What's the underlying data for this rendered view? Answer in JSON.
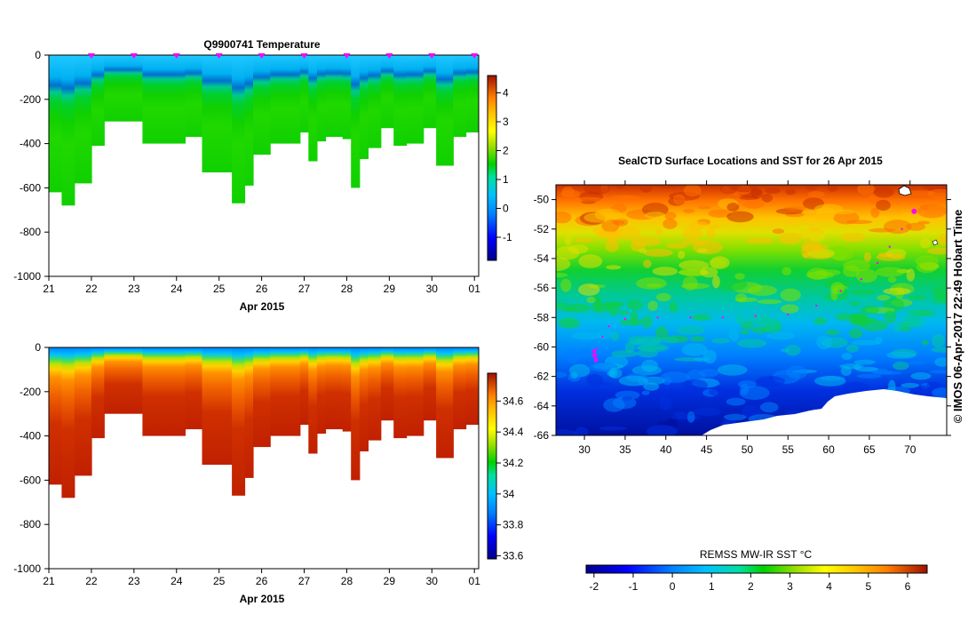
{
  "chart_data": [
    {
      "type": "heatmap",
      "title": "Q9900741  Temperature",
      "xlabel": "Apr 2015",
      "x_ticks": [
        "21",
        "22",
        "23",
        "24",
        "25",
        "26",
        "27",
        "28",
        "29",
        "30",
        "01"
      ],
      "y_ticks": [
        "0",
        "-200",
        "-400",
        "-600",
        "-800",
        "-1000"
      ],
      "ylim": [
        -1000,
        0
      ],
      "profile_days": [
        21.0,
        21.3,
        21.6,
        22.0,
        22.3,
        22.8,
        23.2,
        23.7,
        24.2,
        24.6,
        25.0,
        25.3,
        25.6,
        25.8,
        26.2,
        26.6,
        26.9,
        27.1,
        27.3,
        27.5,
        27.9,
        28.1,
        28.3,
        28.5,
        28.8,
        29.1,
        29.4,
        29.8,
        30.1,
        30.5,
        30.8
      ],
      "profile_max_depth": [
        620,
        680,
        580,
        410,
        300,
        300,
        400,
        400,
        370,
        530,
        530,
        670,
        590,
        450,
        400,
        400,
        350,
        480,
        390,
        370,
        380,
        600,
        470,
        420,
        330,
        410,
        400,
        330,
        500,
        370,
        350
      ],
      "surface_markers": [
        22,
        23,
        24,
        25,
        26,
        27,
        28,
        29,
        30,
        31
      ],
      "colorbar": {
        "ticks": [
          "-1",
          "0",
          "1",
          "2",
          "3",
          "4"
        ],
        "range": [
          -1.8,
          4.6
        ]
      }
    },
    {
      "type": "heatmap",
      "title": "",
      "xlabel": "Apr 2015",
      "x_ticks": [
        "21",
        "22",
        "23",
        "24",
        "25",
        "26",
        "27",
        "28",
        "29",
        "30",
        "01"
      ],
      "y_ticks": [
        "0",
        "-200",
        "-400",
        "-600",
        "-800",
        "-1000"
      ],
      "ylim": [
        -1000,
        0
      ],
      "colorbar": {
        "ticks": [
          "33.6",
          "33.8",
          "34",
          "34.2",
          "34.4",
          "34.6"
        ],
        "range": [
          33.58,
          34.78
        ]
      }
    },
    {
      "type": "heatmap",
      "title": "SealCTD Surface Locations and SST for 26 Apr 2015",
      "x_ticks": [
        "30",
        "35",
        "40",
        "45",
        "50",
        "55",
        "60",
        "65",
        "70"
      ],
      "y_ticks": [
        "-50",
        "-52",
        "-54",
        "-56",
        "-58",
        "-60",
        "-62",
        "-64",
        "-66"
      ],
      "xlim": [
        26.5,
        74.5
      ],
      "ylim": [
        -66,
        -49
      ],
      "side_label": "© IMOS 06-Apr-2017 22:49 Hobart Time",
      "colorbar": {
        "label": "REMSS MW-IR SST °C",
        "ticks": [
          "-2",
          "-1",
          "0",
          "1",
          "2",
          "3",
          "4",
          "5",
          "6"
        ],
        "range": [
          -2.2,
          6.5
        ]
      }
    }
  ],
  "colors": {
    "ramp": [
      "#00008b",
      "#0000ff",
      "#0080ff",
      "#00c0ff",
      "#00e0a0",
      "#00d000",
      "#40e000",
      "#a0e000",
      "#ffff00",
      "#ffc000",
      "#ff8000",
      "#e04000",
      "#a01000"
    ],
    "marker": "#ff00ff"
  }
}
